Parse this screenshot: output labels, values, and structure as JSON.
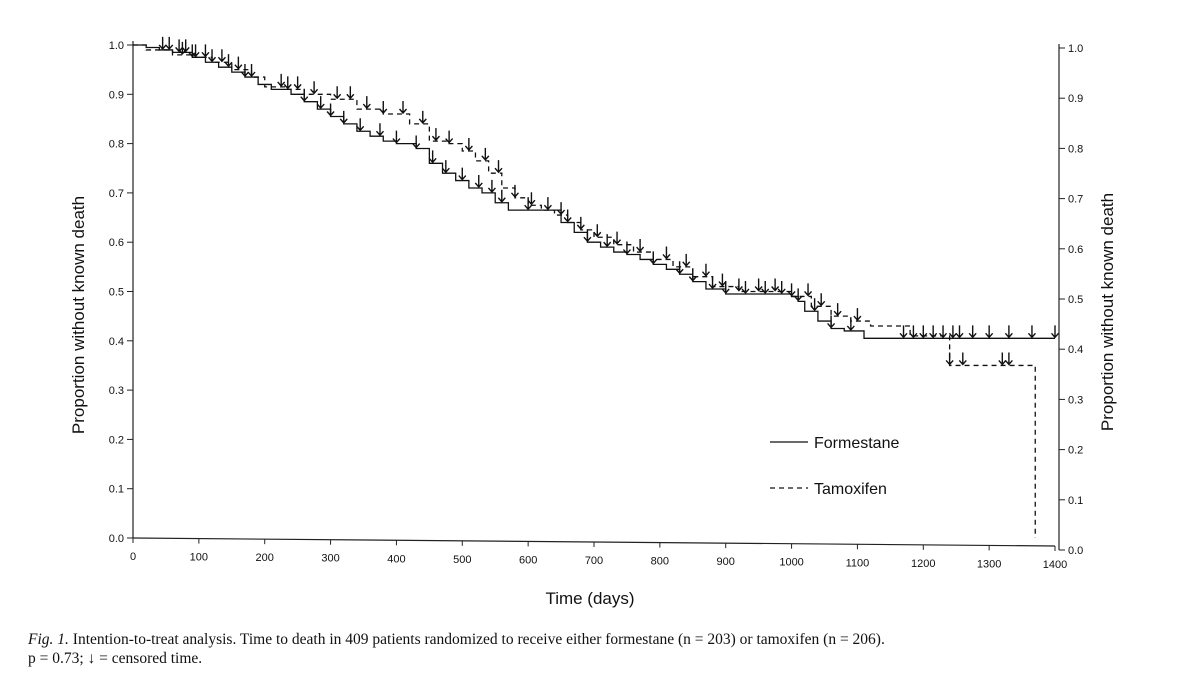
{
  "chart_data": {
    "type": "line",
    "chart_kind": "kaplan-meier step",
    "xlabel": "Time (days)",
    "ylabel_left": "Proportion without known death",
    "ylabel_right": "Proportion without known death",
    "xlim": [
      0,
      1400
    ],
    "ylim": [
      0,
      1.0
    ],
    "xticks": [
      0,
      100,
      200,
      300,
      400,
      500,
      600,
      700,
      800,
      900,
      1000,
      1100,
      1200,
      1300,
      1400
    ],
    "yticks": [
      0.0,
      0.1,
      0.2,
      0.3,
      0.4,
      0.5,
      0.6,
      0.7,
      0.8,
      0.9,
      1.0
    ],
    "ytick_labels": [
      "0.0",
      "0.1",
      "0.2",
      "0.3",
      "0.4",
      "0.5",
      "0.6",
      "0.7",
      "0.8",
      "0.9",
      "1.0"
    ],
    "legend": {
      "placement": "bottom-right"
    },
    "series": [
      {
        "name": "Formestane",
        "style": "solid",
        "x": [
          0,
          20,
          40,
          60,
          90,
          110,
          130,
          150,
          170,
          190,
          210,
          240,
          260,
          280,
          300,
          320,
          340,
          360,
          380,
          400,
          430,
          450,
          470,
          490,
          510,
          530,
          550,
          570,
          590,
          610,
          630,
          650,
          670,
          690,
          710,
          730,
          750,
          770,
          790,
          810,
          830,
          850,
          870,
          900,
          950,
          1000,
          1010,
          1020,
          1040,
          1060,
          1080,
          1110,
          1200,
          1300,
          1400
        ],
        "y": [
          1.0,
          0.995,
          0.99,
          0.985,
          0.975,
          0.965,
          0.955,
          0.945,
          0.935,
          0.92,
          0.91,
          0.9,
          0.885,
          0.87,
          0.855,
          0.84,
          0.825,
          0.815,
          0.805,
          0.8,
          0.79,
          0.76,
          0.74,
          0.725,
          0.71,
          0.7,
          0.68,
          0.665,
          0.665,
          0.665,
          0.665,
          0.64,
          0.62,
          0.6,
          0.59,
          0.58,
          0.575,
          0.565,
          0.555,
          0.545,
          0.535,
          0.52,
          0.505,
          0.495,
          0.495,
          0.49,
          0.48,
          0.46,
          0.44,
          0.425,
          0.42,
          0.405,
          0.405,
          0.405,
          0.405
        ]
      },
      {
        "name": "Tamoxifen",
        "style": "dashed",
        "x": [
          0,
          20,
          40,
          60,
          90,
          120,
          150,
          180,
          200,
          230,
          260,
          300,
          340,
          380,
          420,
          450,
          480,
          500,
          520,
          540,
          560,
          580,
          600,
          620,
          640,
          660,
          680,
          700,
          730,
          760,
          790,
          820,
          850,
          880,
          920,
          960,
          1000,
          1030,
          1060,
          1090,
          1120,
          1180,
          1230,
          1240,
          1300,
          1360,
          1370
        ],
        "y": [
          1.0,
          0.99,
          0.99,
          0.98,
          0.975,
          0.965,
          0.95,
          0.935,
          0.915,
          0.91,
          0.9,
          0.89,
          0.87,
          0.86,
          0.84,
          0.805,
          0.8,
          0.785,
          0.765,
          0.74,
          0.71,
          0.69,
          0.675,
          0.665,
          0.655,
          0.64,
          0.625,
          0.61,
          0.595,
          0.58,
          0.565,
          0.55,
          0.53,
          0.51,
          0.5,
          0.5,
          0.49,
          0.47,
          0.45,
          0.44,
          0.43,
          0.41,
          0.41,
          0.35,
          0.35,
          0.35,
          0.0
        ]
      }
    ],
    "censored_times": {
      "Formestane": [
        45,
        70,
        80,
        95,
        120,
        145,
        170,
        235,
        260,
        285,
        300,
        320,
        345,
        375,
        400,
        430,
        455,
        475,
        500,
        525,
        545,
        560,
        600,
        630,
        660,
        690,
        720,
        750,
        790,
        830,
        850,
        880,
        900,
        930,
        960,
        985,
        1010,
        1035,
        1060,
        1090,
        1170,
        1185,
        1200,
        1215,
        1230,
        1245,
        1255,
        1275,
        1300,
        1330,
        1365,
        1400
      ],
      "Tamoxifen": [
        55,
        75,
        90,
        110,
        135,
        160,
        180,
        225,
        250,
        275,
        310,
        330,
        355,
        380,
        410,
        440,
        460,
        480,
        510,
        535,
        555,
        580,
        605,
        650,
        680,
        705,
        735,
        770,
        810,
        840,
        870,
        895,
        920,
        950,
        975,
        1000,
        1025,
        1045,
        1070,
        1100,
        1240,
        1260,
        1320,
        1330
      ]
    }
  },
  "caption": {
    "fig_label": "Fig. 1.",
    "text": " Intention-to-treat analysis. Time to death in 409 patients randomized to receive either formestane (n = 203) or tamoxifen (n = 206).",
    "line2": "p = 0.73; ↓ = censored time."
  }
}
